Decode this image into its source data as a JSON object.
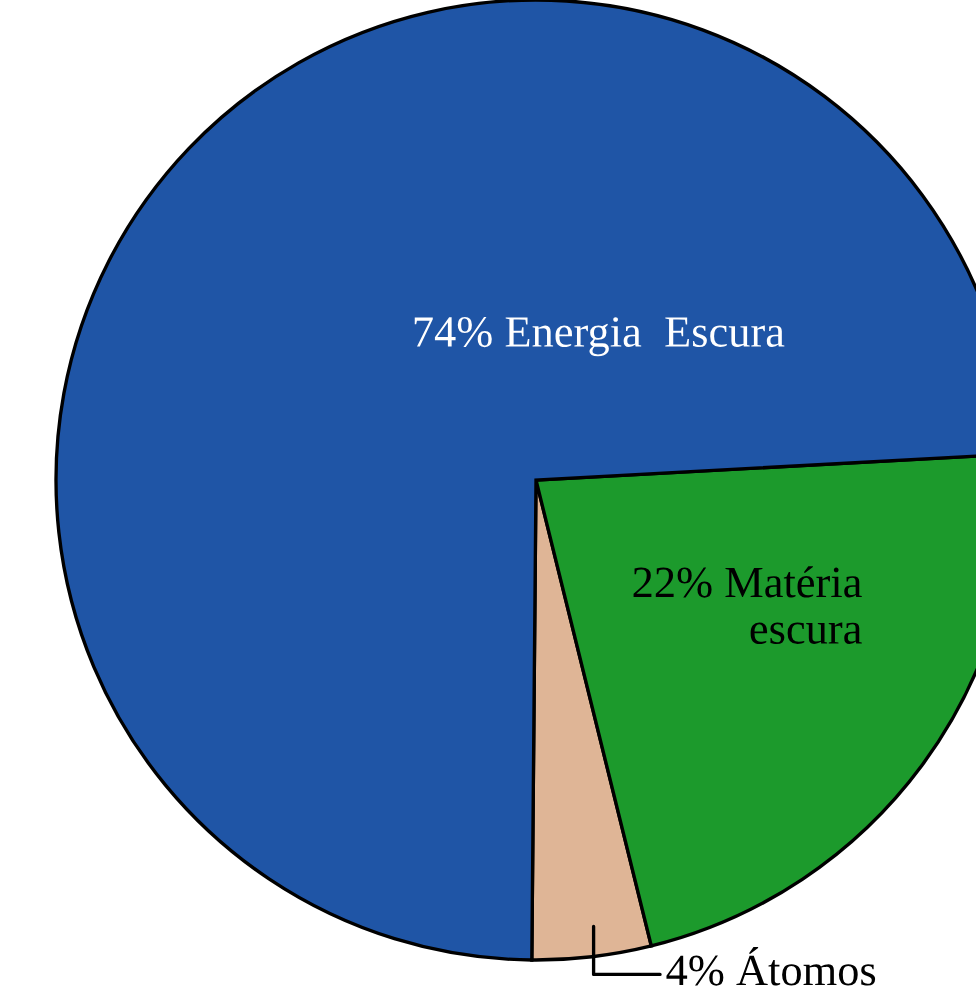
{
  "chart_data": {
    "type": "pie",
    "categories": [
      "Átomos",
      "Matéria\nescura",
      "Energia  Escura"
    ],
    "values": [
      4,
      22,
      74
    ],
    "value_labels": [
      "4%",
      "22%",
      "74%"
    ],
    "colors": [
      "#dfb596",
      "#1c9a2c",
      "#1f55a6"
    ]
  }
}
